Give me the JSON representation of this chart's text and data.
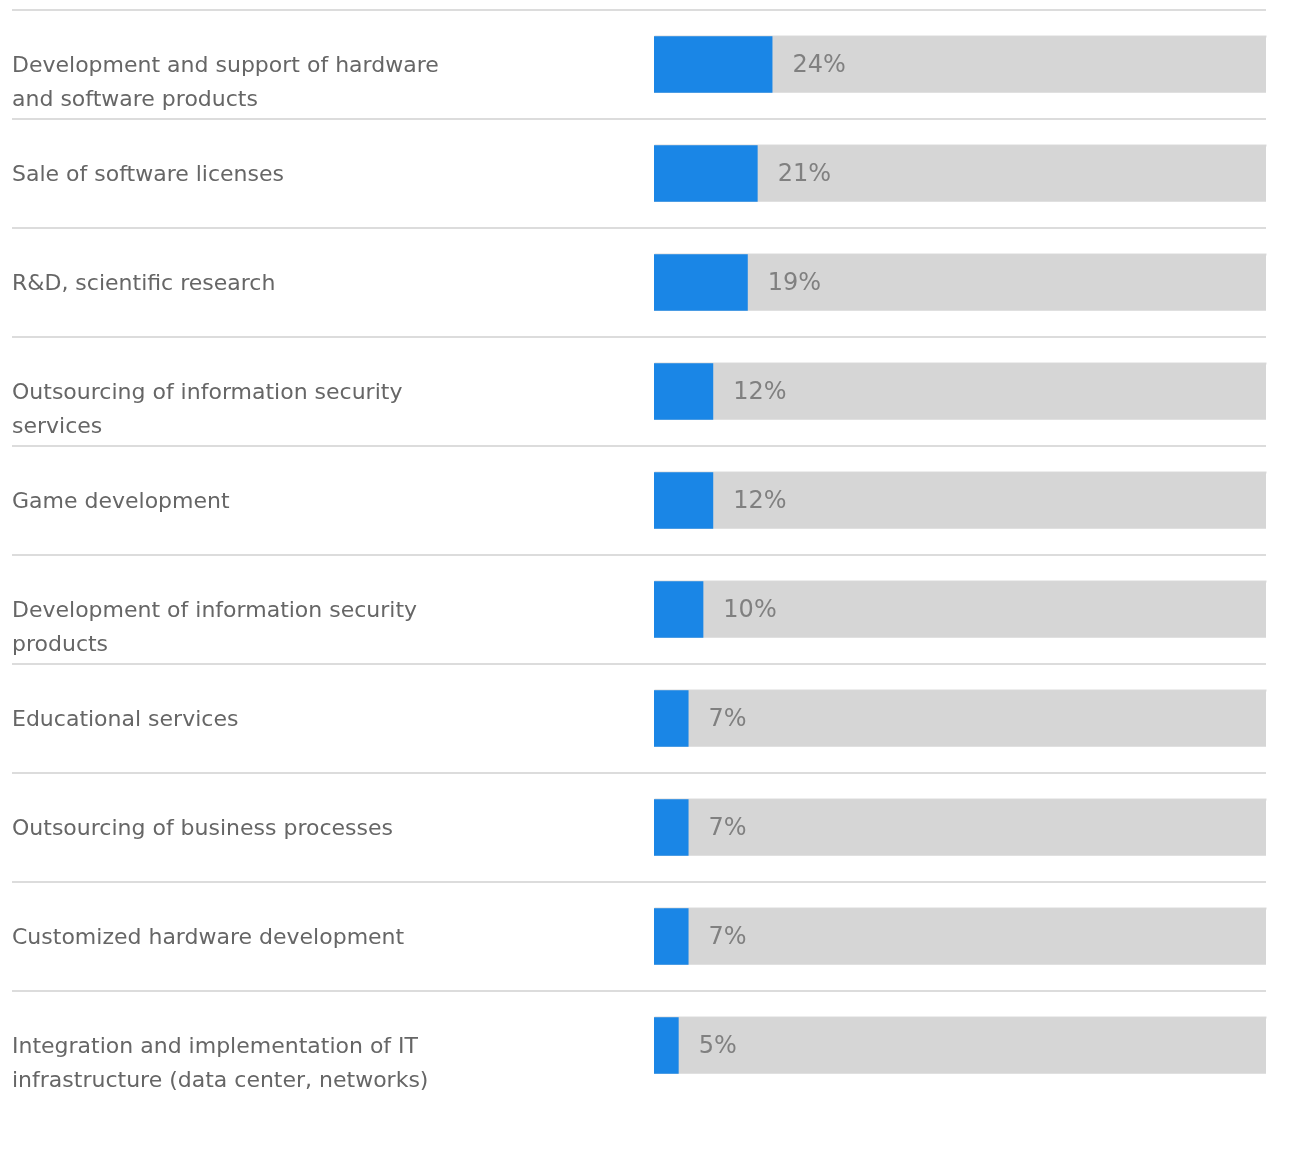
{
  "chart_data": {
    "type": "bar",
    "orientation": "horizontal",
    "categories": [
      "Development and support of hardware and software products",
      "Sale of software licenses",
      "R&D, scientific research",
      "Outsourcing of information security services",
      "Game development",
      "Development of information security products",
      "Educational services",
      "Outsourcing of business processes",
      "Customized hardware development",
      "Integration and implementation of IT infrastructure (data center, networks)"
    ],
    "values": [
      24,
      21,
      19,
      12,
      12,
      10,
      7,
      7,
      7,
      5
    ],
    "color": "#1a86e6",
    "value_labels": [
      "24%",
      "21%",
      "19%",
      "12%",
      "12%",
      "10%",
      "7%",
      "7%",
      "7%",
      "5%"
    ],
    "xlim": [
      0,
      124
    ],
    "bands": [
      {
        "axis": "x",
        "from": 0,
        "to": 124,
        "color": "#d6d6d6"
      }
    ],
    "grid": "y",
    "tick_labels": false
  }
}
